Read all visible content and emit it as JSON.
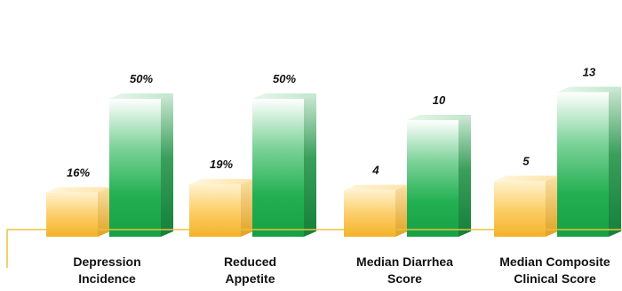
{
  "chart_data": {
    "type": "bar",
    "categories": [
      [
        "Depression",
        "Incidence"
      ],
      [
        "Reduced",
        "Appetite"
      ],
      [
        "Median Diarrhea",
        "Score"
      ],
      [
        "Median Composite",
        "Clinical Score"
      ]
    ],
    "series": [
      {
        "values": [
          16,
          19,
          4,
          5
        ],
        "labels": [
          "16%",
          "19%",
          "4",
          "5"
        ]
      },
      {
        "values": [
          50,
          50,
          10,
          13
        ],
        "labels": [
          "50%",
          "50%",
          "10",
          "13"
        ]
      }
    ],
    "colors": {
      "series_0": "#f5b93a",
      "series_1": "#1fa84b",
      "axis": "#e8c23a"
    },
    "title": "",
    "xlabel": "",
    "ylabel": "",
    "grid": false
  }
}
